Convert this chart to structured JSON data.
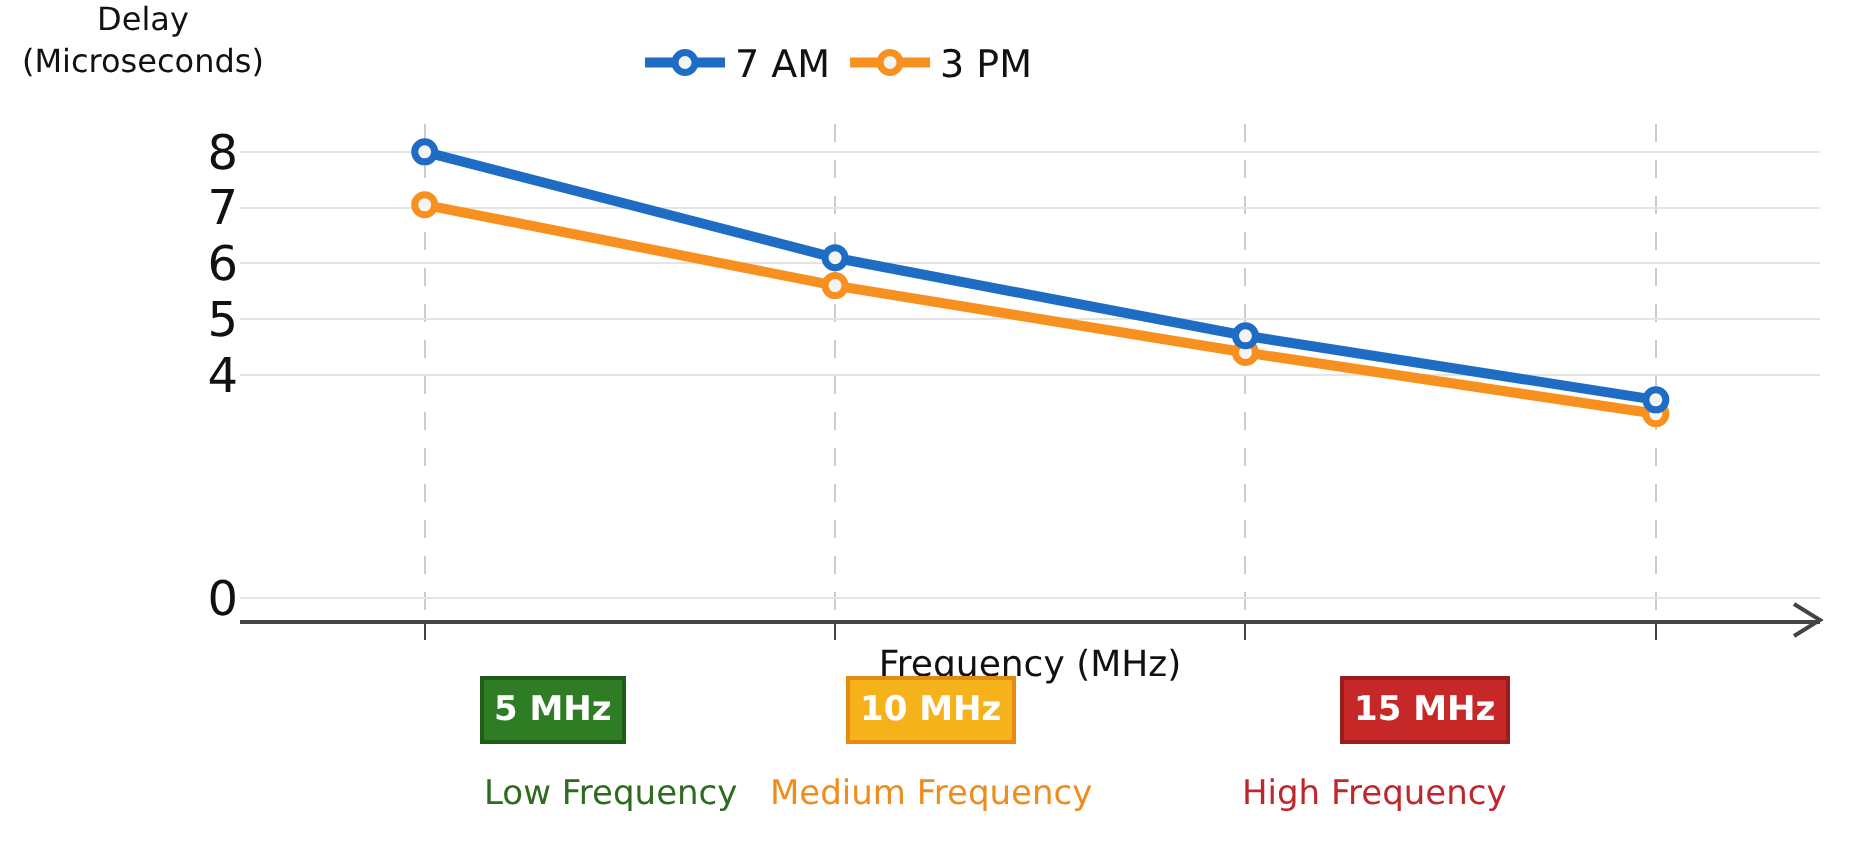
{
  "chart_data": {
    "type": "line",
    "ylabel": "Delay (Microseconds)",
    "xlabel": "Frequency (MHz)",
    "categories": [
      null,
      null,
      null,
      null
    ],
    "series": [
      {
        "name": "7 AM",
        "color": "#1f6cc4",
        "values": [
          8,
          6.1,
          4.7,
          3.55
        ]
      },
      {
        "name": "3 PM",
        "color": "#f7901e",
        "values": [
          7.05,
          5.6,
          4.4,
          3.3
        ]
      }
    ],
    "ylim": [
      -0.4,
      8.5
    ],
    "yticks": [
      0,
      4,
      5,
      6,
      7,
      8
    ],
    "grid": true,
    "legend": "top",
    "marker": "circle",
    "line_style": "solid",
    "annotations": [
      "5 MHz",
      "10 MHz",
      "15 MHz",
      "Low Frequency",
      "Medium Frequency",
      "High Frequency"
    ]
  }
}
